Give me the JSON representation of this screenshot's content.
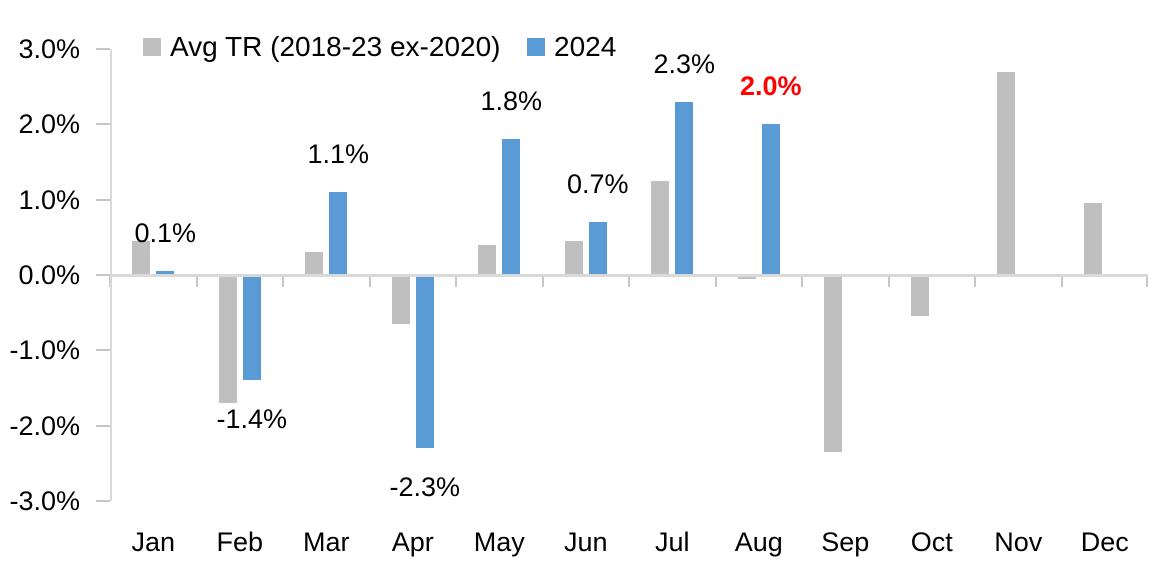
{
  "legend": {
    "items": [
      {
        "label": "Avg TR (2018-23 ex-2020)",
        "color": "#bfbfbf"
      },
      {
        "label": "2024",
        "color": "#5b9bd5"
      }
    ]
  },
  "chart_data": {
    "type": "bar",
    "categories": [
      "Jan",
      "Feb",
      "Mar",
      "Apr",
      "May",
      "Jun",
      "Jul",
      "Aug",
      "Sep",
      "Oct",
      "Nov",
      "Dec"
    ],
    "series": [
      {
        "name": "Avg TR (2018-23 ex-2020)",
        "color": "#bfbfbf",
        "values": [
          0.45,
          -1.7,
          0.3,
          -0.65,
          0.4,
          0.45,
          1.25,
          -0.05,
          -2.35,
          -0.55,
          2.7,
          0.95
        ]
      },
      {
        "name": "2024",
        "color": "#5b9bd5",
        "values": [
          0.05,
          -1.4,
          1.1,
          -2.3,
          1.8,
          0.7,
          2.3,
          2.0,
          null,
          null,
          null,
          null
        ],
        "data_labels": [
          "0.1%",
          "-1.4%",
          "1.1%",
          "-2.3%",
          "1.8%",
          "0.7%",
          "2.3%",
          "2.0%",
          null,
          null,
          null,
          null
        ],
        "data_label_colors": [
          "#000000",
          "#000000",
          "#000000",
          "#000000",
          "#000000",
          "#000000",
          "#000000",
          "#ff0000",
          null,
          null,
          null,
          null
        ],
        "data_label_bold": [
          false,
          false,
          false,
          false,
          false,
          false,
          false,
          true,
          false,
          false,
          false,
          false
        ]
      }
    ],
    "title": "",
    "xlabel": "",
    "ylabel": "",
    "ylim": [
      -3.0,
      3.0
    ],
    "y_ticks": [
      {
        "label": "3.0%",
        "value": 3.0
      },
      {
        "label": "2.0%",
        "value": 2.0
      },
      {
        "label": "1.0%",
        "value": 1.0
      },
      {
        "label": "0.0%",
        "value": 0.0
      },
      {
        "label": "-1.0%",
        "value": -1.0
      },
      {
        "label": "-2.0%",
        "value": -2.0
      },
      {
        "label": "-3.0%",
        "value": -3.0
      }
    ],
    "grid": false,
    "legend_position": "top"
  },
  "colors": {
    "axis": "#d9d9d9",
    "tick": "#c6c6c6",
    "text": "#000000",
    "highlight": "#ff0000"
  }
}
